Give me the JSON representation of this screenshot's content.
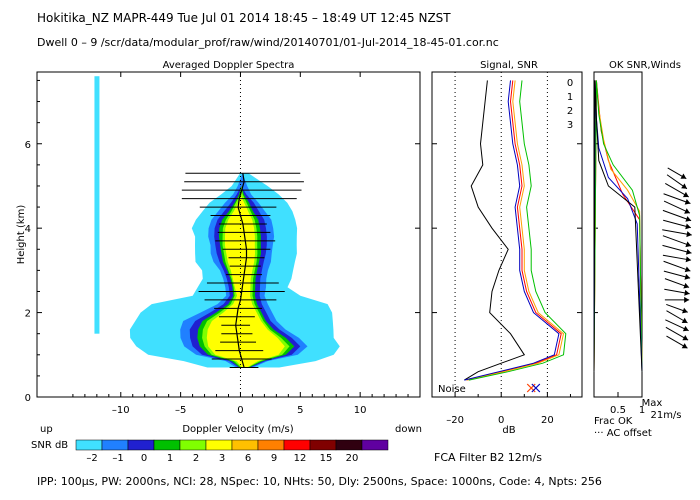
{
  "header": {
    "line1": "Hokitika_NZ   MAPR-449   Tue Jul 01 2014 18:45 – 18:49 UT 12:45 NZST",
    "line2": "Dwell   0 –  9   /scr/data/modular_prof/raw/wind/20140701/01-Jul-2014_18-45-01.cor.nc"
  },
  "footer": {
    "params": "IPP: 100µs,  PW: 2000ns,  NCI:  28,  NSpec: 10, NHts: 50,  Dly: 2500ns,  Space: 1000ns,  Code: 4,  Npts: 256",
    "fca": "FCA Filter B2 12m/s"
  },
  "colors": {
    "snr_scale": [
      "#40e0ff",
      "#2080ff",
      "#2020d0",
      "#00c000",
      "#80ff00",
      "#ffff00",
      "#ffc000",
      "#ff8000",
      "#ff0000",
      "#800000",
      "#300010",
      "#6000a0"
    ],
    "beam0": "#ff0000",
    "beam1": "#ffa000",
    "beam2": "#00c000",
    "beam3": "#0000c0"
  },
  "chart_data": [
    {
      "type": "heatmap",
      "title": "Averaged Doppler Spectra",
      "xlabel": "Doppler Velocity (m/s)",
      "ylabel": "Height (km)",
      "xlim": [
        -17,
        15
      ],
      "ylim": [
        0,
        7.7
      ],
      "xticks": [
        -10,
        -5,
        0,
        5,
        10
      ],
      "yticks": [
        0,
        2,
        4,
        6
      ],
      "x_left_label": "up",
      "x_right_label": "down",
      "colorbar": {
        "label": "SNR dB",
        "ticks": [
          "–2",
          "–1",
          "0",
          "1",
          "2",
          "3",
          "6",
          "9",
          "12",
          "15",
          "20"
        ]
      },
      "mean_velocity_profile": {
        "heights_km": [
          0.7,
          0.9,
          1.1,
          1.3,
          1.5,
          1.7,
          1.9,
          2.1,
          2.3,
          2.5,
          2.7,
          2.9,
          3.1,
          3.3,
          3.5,
          3.7,
          3.9,
          4.1,
          4.3,
          4.5,
          4.7,
          4.9,
          5.1,
          5.3
        ],
        "velocity_ms": [
          0.3,
          0.1,
          -0.1,
          -0.2,
          -0.3,
          -0.4,
          -0.3,
          -0.2,
          0.0,
          0.1,
          0.2,
          0.3,
          0.4,
          0.5,
          0.5,
          0.4,
          0.3,
          0.2,
          0.0,
          -0.2,
          -0.1,
          0.1,
          0.3,
          0.2
        ]
      }
    },
    {
      "type": "line",
      "title": "Signal, SNR",
      "xlabel": "dB",
      "xlim": [
        -30,
        35
      ],
      "xticks": [
        -20,
        0,
        20
      ],
      "tick_labels": [
        "–20",
        "0",
        "20"
      ],
      "noise_label": "Noise",
      "series": [
        {
          "name": "Signal",
          "color": "#000000",
          "heights_km": [
            0.4,
            0.6,
            0.8,
            1.0,
            1.5,
            2.0,
            2.5,
            3.0,
            3.5,
            4.0,
            4.5,
            5.0,
            5.5,
            6.0,
            6.5,
            7.0,
            7.5
          ],
          "values_db": [
            -16,
            -10,
            0,
            10,
            4,
            -5,
            -4,
            -1,
            3,
            -4,
            -10,
            -13,
            -8,
            -9,
            -8,
            -7,
            -6
          ]
        },
        {
          "name": "SNR beam 0",
          "color": "#ff0000",
          "heights_km": [
            0.4,
            0.6,
            0.8,
            1.0,
            1.5,
            2.0,
            2.5,
            3.0,
            3.5,
            4.0,
            4.5,
            5.0,
            5.5,
            6.0,
            6.5,
            7.0,
            7.5
          ],
          "values_db": [
            -15,
            0,
            15,
            24,
            26,
            15,
            11,
            9,
            9,
            8,
            7,
            9,
            8,
            6,
            5,
            4,
            5
          ]
        },
        {
          "name": "SNR beam 1",
          "color": "#ffa000",
          "heights_km": [
            0.4,
            0.6,
            0.8,
            1.0,
            1.5,
            2.0,
            2.5,
            3.0,
            3.5,
            4.0,
            4.5,
            5.0,
            5.5,
            6.0,
            6.5,
            7.0,
            7.5
          ],
          "values_db": [
            -15,
            1,
            16,
            25,
            27,
            16,
            12,
            10,
            10,
            9,
            8,
            10,
            9,
            7,
            6,
            5,
            6
          ]
        },
        {
          "name": "SNR beam 2",
          "color": "#00c000",
          "heights_km": [
            0.4,
            0.6,
            0.8,
            1.0,
            1.5,
            2.0,
            2.5,
            3.0,
            3.5,
            4.0,
            4.5,
            5.0,
            5.5,
            6.0,
            6.5,
            7.0,
            7.5
          ],
          "values_db": [
            -14,
            3,
            18,
            27,
            28,
            19,
            15,
            13,
            13,
            12,
            11,
            13,
            12,
            10,
            9,
            8,
            9
          ]
        },
        {
          "name": "SNR beam 3",
          "color": "#0000c0",
          "heights_km": [
            0.4,
            0.6,
            0.8,
            1.0,
            1.5,
            2.0,
            2.5,
            3.0,
            3.5,
            4.0,
            4.5,
            5.0,
            5.5,
            6.0,
            6.5,
            7.0,
            7.5
          ],
          "values_db": [
            -16,
            -1,
            14,
            23,
            25,
            14,
            10,
            8,
            8,
            7,
            6,
            8,
            7,
            5,
            4,
            3,
            4
          ]
        }
      ],
      "noise_markers_db": [
        13,
        15
      ]
    },
    {
      "type": "line",
      "title": "OK SNR,Winds",
      "legend": [
        "0",
        "1",
        "2",
        "3"
      ],
      "xlim": [
        0,
        1
      ],
      "xticks": [
        0.5,
        1
      ],
      "tick_labels": [
        "0.5",
        "1"
      ],
      "xlabel_lines": [
        "Frac OK",
        "··· AC offset"
      ],
      "max_wind_label": "Max",
      "max_wind_value": "21m/s"
    }
  ],
  "wind_barbs": [
    {
      "height_km": 1.3,
      "speed_ms": 17,
      "dir_deg": 300
    },
    {
      "height_km": 1.5,
      "speed_ms": 18,
      "dir_deg": 300
    },
    {
      "height_km": 1.7,
      "speed_ms": 18,
      "dir_deg": 295
    },
    {
      "height_km": 1.9,
      "speed_ms": 17,
      "dir_deg": 300
    },
    {
      "height_km": 2.1,
      "speed_ms": 16,
      "dir_deg": 290
    },
    {
      "height_km": 2.3,
      "speed_ms": 17,
      "dir_deg": 270
    },
    {
      "height_km": 2.5,
      "speed_ms": 18,
      "dir_deg": 280
    },
    {
      "height_km": 2.7,
      "speed_ms": 18,
      "dir_deg": 290
    },
    {
      "height_km": 2.9,
      "speed_ms": 19,
      "dir_deg": 285
    },
    {
      "height_km": 3.1,
      "speed_ms": 20,
      "dir_deg": 290
    },
    {
      "height_km": 3.3,
      "speed_ms": 20,
      "dir_deg": 280
    },
    {
      "height_km": 3.5,
      "speed_ms": 21,
      "dir_deg": 285
    },
    {
      "height_km": 3.7,
      "speed_ms": 21,
      "dir_deg": 290
    },
    {
      "height_km": 3.9,
      "speed_ms": 21,
      "dir_deg": 280
    },
    {
      "height_km": 4.1,
      "speed_ms": 20,
      "dir_deg": 285
    },
    {
      "height_km": 4.3,
      "speed_ms": 21,
      "dir_deg": 290
    },
    {
      "height_km": 4.5,
      "speed_ms": 20,
      "dir_deg": 295
    },
    {
      "height_km": 4.7,
      "speed_ms": 20,
      "dir_deg": 290
    },
    {
      "height_km": 4.9,
      "speed_ms": 19,
      "dir_deg": 300
    },
    {
      "height_km": 5.1,
      "speed_ms": 17,
      "dir_deg": 305
    },
    {
      "height_km": 5.3,
      "speed_ms": 15,
      "dir_deg": 300
    }
  ]
}
